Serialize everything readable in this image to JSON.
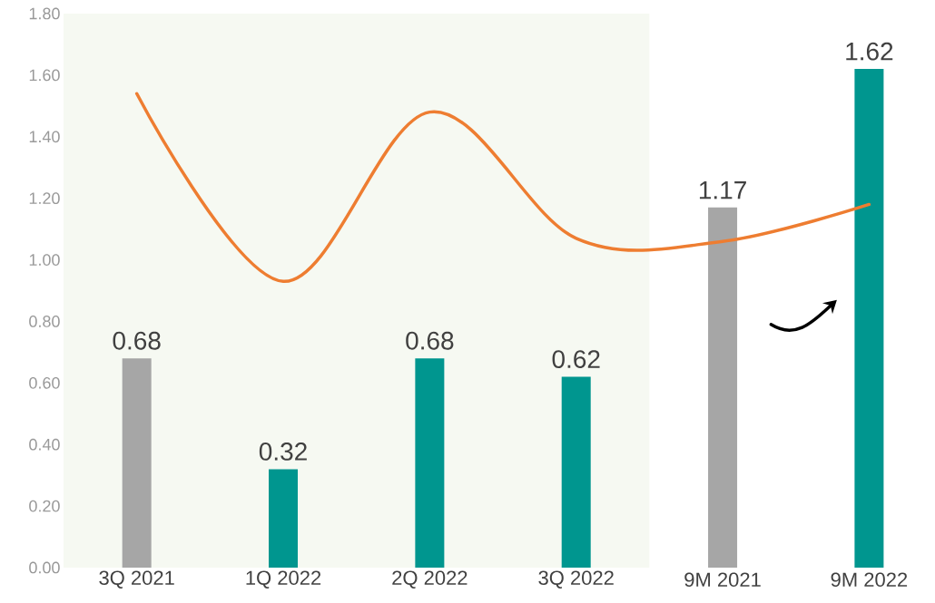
{
  "chart_data": {
    "type": "bar",
    "categories": [
      "3Q 2021",
      "1Q 2022",
      "2Q 2022",
      "3Q 2022",
      "9M 2021",
      "9M 2022"
    ],
    "series": [
      {
        "values": [
          0.68,
          0.32,
          0.68,
          0.62,
          1.17,
          1.62
        ],
        "value_labels": [
          "0.68",
          "0.32",
          "0.68",
          "0.62",
          "1.17",
          "1.62"
        ],
        "colors": [
          "#a6a6a6",
          "#00968f",
          "#00968f",
          "#00968f",
          "#a6a6a6",
          "#00968f"
        ]
      },
      {
        "type": "line",
        "color": "#ee7d31",
        "values": [
          1.54,
          0.93,
          1.48,
          1.07,
          1.06,
          1.18
        ]
      }
    ],
    "ylim": [
      0,
      1.8
    ],
    "yticks": [
      {
        "value": 0,
        "label": "0.00"
      },
      {
        "value": 0.2,
        "label": "0.20"
      },
      {
        "value": 0.4,
        "label": "0.40"
      },
      {
        "value": 0.6,
        "label": "0.60"
      },
      {
        "value": 0.8,
        "label": "0.80"
      },
      {
        "value": 1.0,
        "label": "1.00"
      },
      {
        "value": 1.2,
        "label": "1.20"
      },
      {
        "value": 1.4,
        "label": "1.40"
      },
      {
        "value": 1.6,
        "label": "1.60"
      },
      {
        "value": 1.8,
        "label": "1.80"
      }
    ],
    "bands": [
      {
        "axis": "x",
        "from": "3Q 2021",
        "to": "3Q 2022",
        "color": "#f6f9f2"
      }
    ],
    "marker": "none"
  }
}
